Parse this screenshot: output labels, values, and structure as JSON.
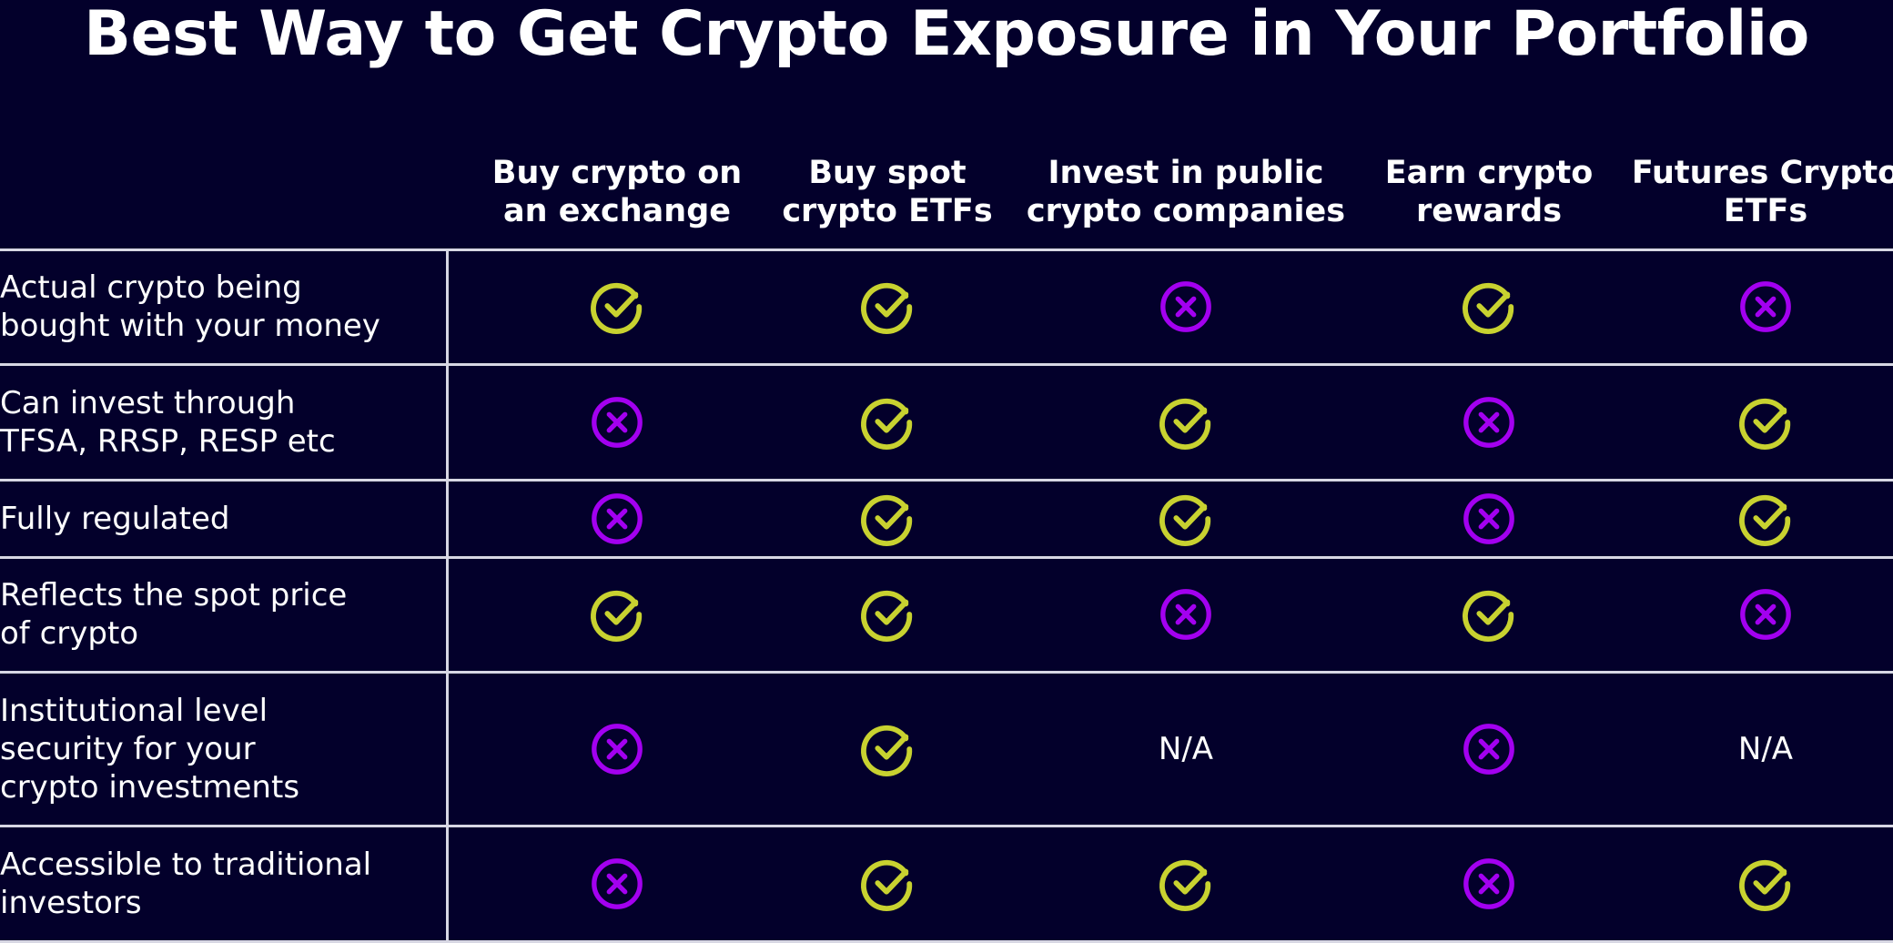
{
  "title": "Best Way to Get Crypto Exposure in Your Portfolio",
  "colors": {
    "background": "#03002b",
    "check": "#c8d230",
    "cross": "#a300f0",
    "divider": "#d7d7e3",
    "text": "#ffffff"
  },
  "columns": [
    "Buy crypto on\nan exchange",
    "Buy spot\ncrypto ETFs",
    "Invest in public\ncrypto companies",
    "Earn crypto\nrewards",
    "Futures Crypto\nETFs"
  ],
  "rows": [
    {
      "label": "Actual crypto being\nbought with your money",
      "values": [
        "check-icon",
        "check-icon",
        "cross-icon",
        "check-icon",
        "cross-icon"
      ]
    },
    {
      "label": "Can invest through\nTFSA, RRSP, RESP etc",
      "values": [
        "cross-icon",
        "check-icon",
        "check-icon",
        "cross-icon",
        "check-icon"
      ]
    },
    {
      "label": "Fully regulated",
      "values": [
        "cross-icon",
        "check-icon",
        "check-icon",
        "cross-icon",
        "check-icon"
      ]
    },
    {
      "label": "Reflects the spot price\nof crypto",
      "values": [
        "check-icon",
        "check-icon",
        "cross-icon",
        "check-icon",
        "cross-icon"
      ]
    },
    {
      "label": "Institutional level\nsecurity for your\ncrypto investments",
      "values": [
        "cross-icon",
        "check-icon",
        "N/A",
        "cross-icon",
        "N/A"
      ]
    },
    {
      "label": "Accessible to traditional\ninvestors",
      "values": [
        "cross-icon",
        "check-icon",
        "check-icon",
        "cross-icon",
        "check-icon"
      ]
    }
  ]
}
